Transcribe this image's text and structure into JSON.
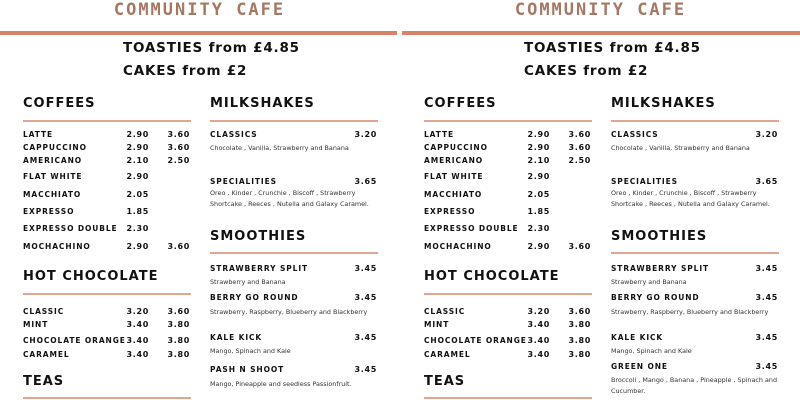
{
  "panels": [
    {
      "title": "COMMUNITY CAFE",
      "promos": [
        "TOASTIES from £4.85",
        "CAKES from £2"
      ],
      "coffees": {
        "heading": "COFFEES",
        "items": [
          {
            "name": "LATTE",
            "p1": "2.90",
            "p2": "3.60"
          },
          {
            "name": "CAPPUCCINO",
            "p1": "2.90",
            "p2": "3.60"
          },
          {
            "name": "AMERICANO",
            "p1": "2.10",
            "p2": "2.50"
          },
          {
            "name": "FLAT WHITE",
            "p1": "2.90",
            "p2": ""
          },
          {
            "name": "MACCHIATO",
            "p1": "2.05",
            "p2": ""
          },
          {
            "name": "EXPRESSO",
            "p1": "1.85",
            "p2": ""
          },
          {
            "name": "EXPRESSO DOUBLE",
            "p1": "2.30",
            "p2": ""
          },
          {
            "name": "MOCHACHINO",
            "p1": "2.90",
            "p2": "3.60"
          }
        ]
      },
      "hot_chocolate": {
        "heading": "HOT CHOCOLATE",
        "items": [
          {
            "name": "CLASSIC",
            "p1": "3.20",
            "p2": "3.60"
          },
          {
            "name": "MINT",
            "p1": "3.40",
            "p2": "3.80"
          },
          {
            "name": "CHOCOLATE ORANGE",
            "p1": "3.40",
            "p2": "3.80"
          },
          {
            "name": "CARAMEL",
            "p1": "3.40",
            "p2": "3.80"
          }
        ]
      },
      "teas": {
        "heading": "TEAS"
      },
      "milkshakes": {
        "heading": "MILKSHAKES",
        "items": [
          {
            "name": "CLASSICS",
            "price": "3.20",
            "desc": "Chocolate , Vanilla, Strawberry and Banana"
          },
          {
            "name": "SPECIALITIES",
            "price": "3.65",
            "desc": "Oreo , Kinder , Crunchie , Biscoff , Strawberry Shortcake , Reeces , Nutella and Galaxy Caramel."
          }
        ]
      },
      "smoothies": {
        "heading": "SMOOTHIES",
        "items": [
          {
            "name": "STRAWBERRY SPLIT",
            "price": "3.45",
            "desc": "Strawberry and Banana"
          },
          {
            "name": "BERRY GO ROUND",
            "price": "3.45",
            "desc": "Strawberry, Raspberry, Blueberry and Blackberry"
          },
          {
            "name": "KALE KICK",
            "price": "3.45",
            "desc": "Mango, Spinach and Kale"
          },
          {
            "name": "PASH N SHOOT",
            "price": "3.45",
            "desc": "Mango, Pineapple and seedless Passionfruit."
          }
        ]
      }
    },
    {
      "title": "COMMUNITY CAFE",
      "promos": [
        "TOASTIES from £4.85",
        "CAKES from £2"
      ],
      "coffees": {
        "heading": "COFFEES",
        "items": [
          {
            "name": "LATTE",
            "p1": "2.90",
            "p2": "3.60"
          },
          {
            "name": "CAPPUCCINO",
            "p1": "2.90",
            "p2": "3.60"
          },
          {
            "name": "AMERICANO",
            "p1": "2.10",
            "p2": "2.50"
          },
          {
            "name": "FLAT WHITE",
            "p1": "2.90",
            "p2": ""
          },
          {
            "name": "MACCHIATO",
            "p1": "2.05",
            "p2": ""
          },
          {
            "name": "EXPRESSO",
            "p1": "1.85",
            "p2": ""
          },
          {
            "name": "EXPRESSO DOUBLE",
            "p1": "2.30",
            "p2": ""
          },
          {
            "name": "MOCHACHINO",
            "p1": "2.90",
            "p2": "3.60"
          }
        ]
      },
      "hot_chocolate": {
        "heading": "HOT CHOCOLATE",
        "items": [
          {
            "name": "CLASSIC",
            "p1": "3.20",
            "p2": "3.60"
          },
          {
            "name": "MINT",
            "p1": "3.40",
            "p2": "3.80"
          },
          {
            "name": "CHOCOLATE ORANGE",
            "p1": "3.40",
            "p2": "3.80"
          },
          {
            "name": "CARAMEL",
            "p1": "3.40",
            "p2": "3.80"
          }
        ]
      },
      "teas": {
        "heading": "TEAS"
      },
      "milkshakes": {
        "heading": "MILKSHAKES",
        "items": [
          {
            "name": "CLASSICS",
            "price": "3.20",
            "desc": "Chocolate , Vanilla, Strawberry and Banana"
          },
          {
            "name": "SPECIALITIES",
            "price": "3.65",
            "desc": "Oreo , Kinder , Crunchie , Biscoff , Strawberry Shortcake , Reeces , Nutella and Galaxy Caramel."
          }
        ]
      },
      "smoothies": {
        "heading": "SMOOTHIES",
        "items": [
          {
            "name": "STRAWBERRY SPLIT",
            "price": "3.45",
            "desc": "Strawberry and Banana"
          },
          {
            "name": "BERRY GO ROUND",
            "price": "3.45",
            "desc": "Strawberry, Raspberry, Blueberry and Blackberry"
          },
          {
            "name": "KALE KICK",
            "price": "3.45",
            "desc": "Mango, Spinach and Kale"
          },
          {
            "name": "GREEN ONE",
            "price": "3.45",
            "desc": "Broccoli , Mango , Banana , Pineapple , Spinach and Cucumber."
          }
        ]
      }
    }
  ],
  "colors": {
    "accent_line": "#d9826a",
    "title": "#a57864",
    "section_rule": "#e2a594"
  }
}
